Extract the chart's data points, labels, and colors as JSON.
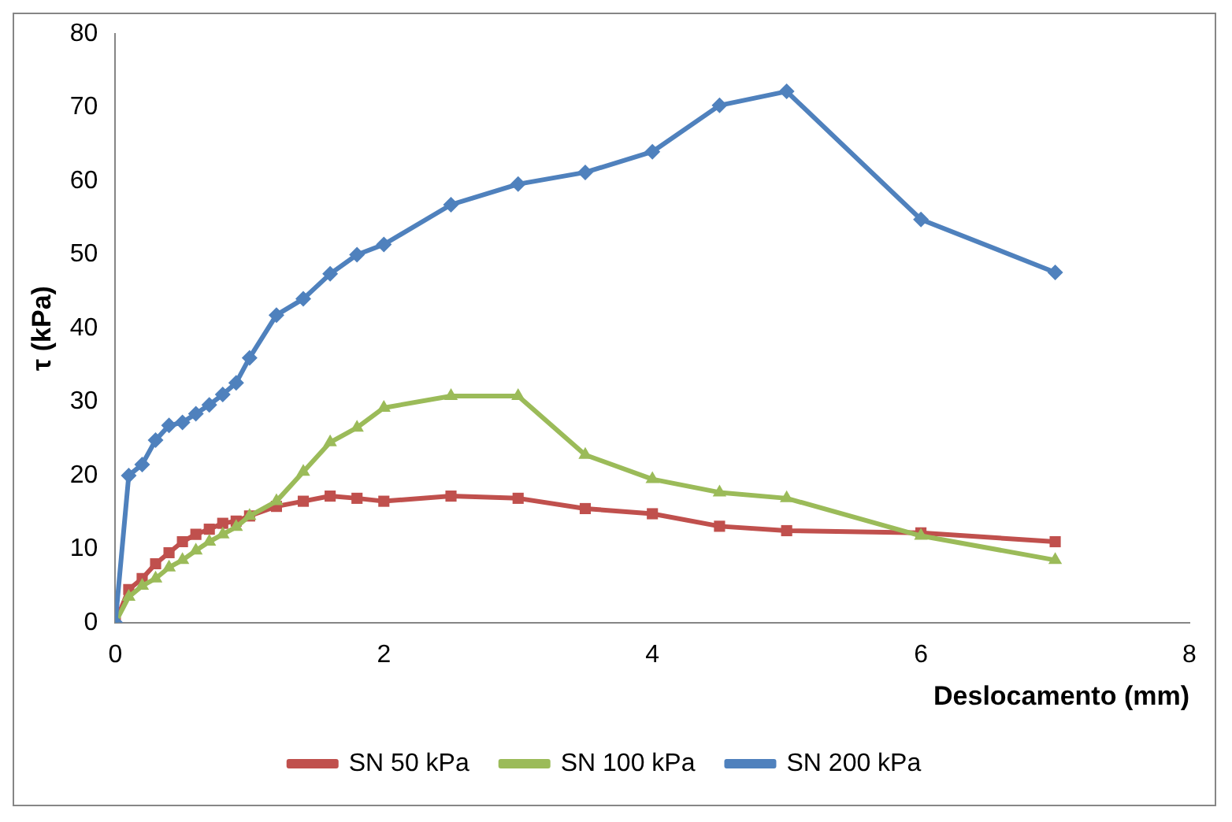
{
  "chart_data": {
    "type": "line",
    "xlabel": "Deslocamento (mm)",
    "ylabel": "τ (kPa)",
    "xlim": [
      0,
      8
    ],
    "xticks": [
      0,
      2,
      4,
      6,
      8
    ],
    "ylim": [
      0,
      80
    ],
    "yticks": [
      0,
      10,
      20,
      30,
      40,
      50,
      60,
      70,
      80
    ],
    "grid": false,
    "legend": "bottom",
    "series": [
      {
        "name": "SN 50 kPa",
        "color": "#c0504d",
        "marker": "square",
        "x": [
          0,
          0.1,
          0.2,
          0.3,
          0.4,
          0.5,
          0.6,
          0.7,
          0.8,
          0.9,
          1.0,
          1.2,
          1.4,
          1.6,
          1.8,
          2,
          2.5,
          3,
          3.5,
          4,
          4.5,
          5,
          6,
          7
        ],
        "values": [
          0,
          4.5,
          6,
          8,
          9.5,
          11,
          12,
          12.7,
          13.5,
          13.8,
          14.5,
          15.8,
          16.5,
          17.2,
          16.9,
          16.5,
          17.2,
          16.9,
          15.5,
          14.8,
          13.1,
          12.5,
          12.2,
          11
        ]
      },
      {
        "name": "SN 100 kPa",
        "color": "#9bbb59",
        "marker": "triangle",
        "x": [
          0,
          0.1,
          0.2,
          0.3,
          0.4,
          0.5,
          0.6,
          0.7,
          0.8,
          0.9,
          1.0,
          1.2,
          1.4,
          1.6,
          1.8,
          2,
          2.5,
          3,
          3.5,
          4,
          4.5,
          5,
          6,
          7
        ],
        "values": [
          0,
          3.5,
          5,
          6,
          7.5,
          8.5,
          9.8,
          11,
          12,
          13,
          14.5,
          16.5,
          20.5,
          24.5,
          26.5,
          29.2,
          30.8,
          30.8,
          22.8,
          19.5,
          17.7,
          16.9,
          11.8,
          8.5
        ]
      },
      {
        "name": "SN 200 kPa",
        "color": "#4f81bd",
        "marker": "diamond",
        "x": [
          0,
          0.1,
          0.2,
          0.3,
          0.4,
          0.5,
          0.6,
          0.7,
          0.8,
          0.9,
          1.0,
          1.2,
          1.4,
          1.6,
          1.8,
          2,
          2.5,
          3,
          3.5,
          4,
          4.5,
          5,
          6,
          7
        ],
        "values": [
          0,
          20,
          21.5,
          24.8,
          26.8,
          27.2,
          28.4,
          29.6,
          31,
          32.6,
          36,
          41.8,
          44,
          47.4,
          50,
          51.4,
          56.8,
          59.6,
          61.2,
          64,
          70.3,
          72.2,
          54.8,
          47.6
        ]
      }
    ]
  }
}
